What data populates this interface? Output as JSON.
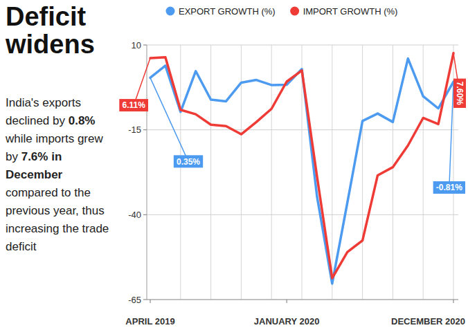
{
  "chart_data": {
    "type": "line",
    "title": "Deficit widens",
    "subtitle": [
      "India's exports declined by ",
      "0.8%",
      " while imports grew by ",
      "7.6% in December",
      " compared to the previous year, thus increasing the trade deficit"
    ],
    "categories": [
      "APRIL 2019",
      null,
      null,
      null,
      null,
      null,
      null,
      null,
      null,
      "JANUARY 2020",
      null,
      null,
      null,
      null,
      null,
      null,
      null,
      null,
      null,
      null,
      "DECEMBER 2020"
    ],
    "series": [
      {
        "name": "EXPORT GROWTH (%)",
        "color": "#4d9bf0",
        "values": [
          0.35,
          3.9,
          -9.7,
          2.3,
          -6.1,
          -6.6,
          -1.1,
          -0.3,
          -1.8,
          -1.7,
          2.9,
          -34.6,
          -60.3,
          -36.5,
          -12.4,
          -10.2,
          -12.7,
          6.0,
          -5.1,
          -8.7,
          -0.81
        ],
        "value_labels": [
          "0.35%",
          null,
          null,
          null,
          null,
          null,
          null,
          null,
          null,
          null,
          null,
          null,
          null,
          null,
          null,
          null,
          null,
          null,
          null,
          null,
          "-0.81%"
        ]
      },
      {
        "name": "IMPORT GROWTH (%)",
        "color": "#ef3b36",
        "values": [
          6.11,
          6.4,
          -9.1,
          -10.4,
          -13.5,
          -13.9,
          -16.3,
          -12.7,
          -8.8,
          -0.8,
          2.5,
          -28.7,
          -58.7,
          -51.0,
          -47.6,
          -28.4,
          -26.0,
          -19.6,
          -11.5,
          -13.3,
          7.6
        ],
        "value_labels": [
          "6.11%",
          null,
          null,
          null,
          null,
          null,
          null,
          null,
          null,
          null,
          null,
          null,
          null,
          null,
          null,
          null,
          null,
          null,
          null,
          null,
          "7.60%"
        ]
      }
    ],
    "ylim": [
      -65,
      10
    ],
    "yticks": [
      -65,
      -40,
      -15,
      10
    ],
    "grid": true,
    "legend": "top",
    "marker": "none",
    "data_labels": true
  }
}
